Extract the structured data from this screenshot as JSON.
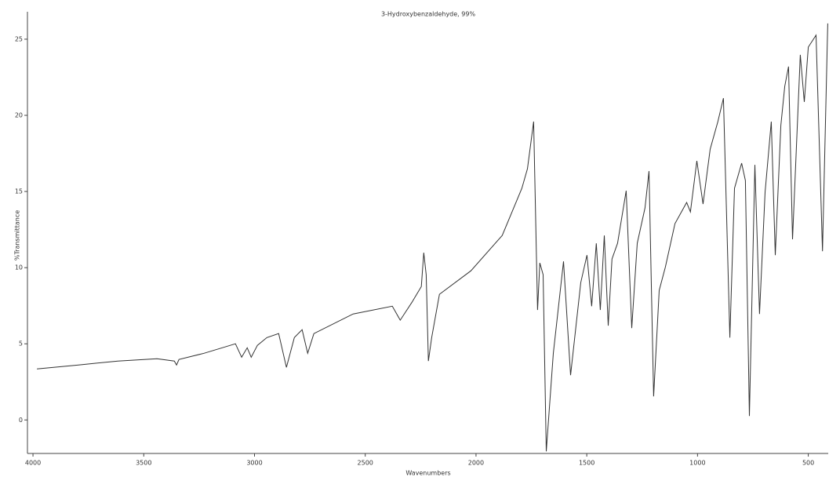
{
  "chart_data": {
    "type": "line",
    "title": "3-Hydroxybenzaldehyde, 99%",
    "x_label": "Wavenumbers",
    "y_label": "%Transmittance",
    "xlim": [
      4025,
      410
    ],
    "ylim": [
      -2.2,
      26.8
    ],
    "xticks": [
      4000,
      3500,
      3000,
      2500,
      2000,
      1500,
      1000,
      500
    ],
    "yticks": [
      0,
      5,
      10,
      15,
      20,
      25
    ],
    "color": "#333333",
    "x": [
      3982,
      3795,
      3617,
      3440,
      3362,
      3352,
      3341,
      3228,
      3086,
      3058,
      3033,
      3015,
      2987,
      2944,
      2891,
      2856,
      2820,
      2785,
      2760,
      2732,
      2555,
      2378,
      2342,
      2289,
      2247,
      2236,
      2225,
      2215,
      2200,
      2165,
      2023,
      1882,
      1793,
      1768,
      1740,
      1722,
      1712,
      1697,
      1683,
      1651,
      1605,
      1573,
      1527,
      1499,
      1478,
      1457,
      1439,
      1421,
      1403,
      1386,
      1361,
      1322,
      1297,
      1272,
      1237,
      1219,
      1198,
      1173,
      1145,
      1102,
      1049,
      1032,
      1003,
      975,
      943,
      908,
      883,
      854,
      833,
      801,
      784,
      766,
      741,
      720,
      695,
      667,
      649,
      624,
      606,
      589,
      571,
      536,
      518,
      500,
      465,
      436,
      412
    ],
    "values": [
      3.35,
      3.61,
      3.87,
      4.02,
      3.87,
      3.61,
      3.97,
      4.38,
      5.0,
      4.12,
      4.74,
      4.12,
      4.9,
      5.41,
      5.67,
      3.45,
      5.41,
      5.93,
      4.38,
      5.67,
      6.96,
      7.47,
      6.55,
      7.73,
      8.76,
      10.98,
      9.54,
      3.87,
      5.41,
      8.25,
      9.79,
      12.11,
      15.21,
      16.49,
      19.59,
      7.22,
      10.31,
      9.54,
      -2.06,
      4.38,
      10.41,
      2.94,
      9.02,
      10.82,
      7.47,
      11.6,
      7.22,
      12.11,
      6.19,
      10.57,
      11.6,
      15.05,
      6.03,
      11.6,
      13.92,
      16.34,
      1.55,
      8.51,
      10.05,
      12.89,
      14.28,
      13.66,
      17.01,
      14.18,
      17.78,
      19.59,
      21.13,
      5.41,
      15.21,
      16.86,
      15.72,
      0.26,
      16.75,
      6.96,
      14.95,
      19.59,
      10.82,
      19.33,
      21.91,
      23.2,
      11.86,
      23.97,
      20.88,
      24.48,
      25.26,
      11.08,
      26.03
    ]
  }
}
